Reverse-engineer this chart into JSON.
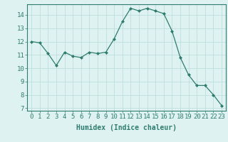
{
  "x": [
    0,
    1,
    2,
    3,
    4,
    5,
    6,
    7,
    8,
    9,
    10,
    11,
    12,
    13,
    14,
    15,
    16,
    17,
    18,
    19,
    20,
    21,
    22,
    23
  ],
  "y": [
    12.0,
    11.9,
    11.1,
    10.2,
    11.2,
    10.9,
    10.8,
    11.2,
    11.1,
    11.2,
    12.2,
    13.5,
    14.5,
    14.3,
    14.5,
    14.3,
    14.1,
    12.8,
    10.8,
    9.5,
    8.7,
    8.7,
    8.0,
    7.2
  ],
  "line_color": "#2e7d6e",
  "marker": "D",
  "marker_size": 2,
  "bg_color": "#dff2f2",
  "grid_color": "#b8dada",
  "xlabel": "Humidex (Indice chaleur)",
  "ylim": [
    6.8,
    14.8
  ],
  "xlim": [
    -0.5,
    23.5
  ],
  "yticks": [
    7,
    8,
    9,
    10,
    11,
    12,
    13,
    14
  ],
  "xticks": [
    0,
    1,
    2,
    3,
    4,
    5,
    6,
    7,
    8,
    9,
    10,
    11,
    12,
    13,
    14,
    15,
    16,
    17,
    18,
    19,
    20,
    21,
    22,
    23
  ],
  "tick_color": "#2e7d6e",
  "label_color": "#2e7d6e",
  "font_size_xlabel": 7,
  "font_size_ticks": 6.5
}
